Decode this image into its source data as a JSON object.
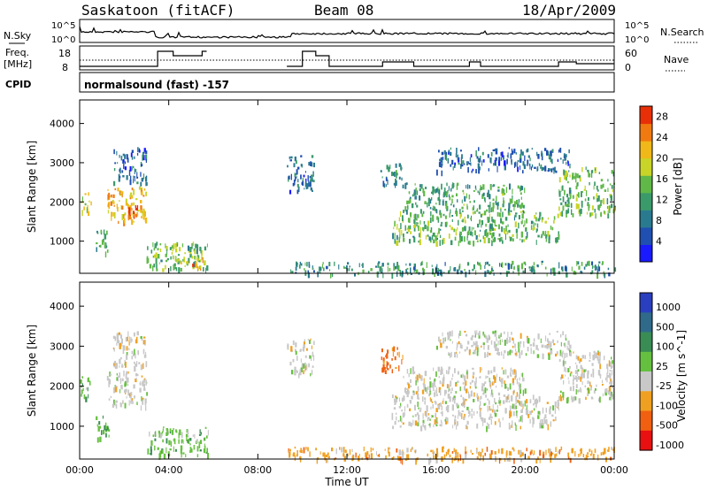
{
  "header": {
    "station": "Saskatoon (fitACF)",
    "beam": "Beam 08",
    "date": "18/Apr/2009"
  },
  "strip_labels": {
    "nsky": "N.Sky",
    "freq_line1": "Freq.",
    "freq_line2": "[MHz]",
    "cpid": "CPID",
    "nsearch": "N.Search",
    "nave": "Nave",
    "cpid_value": "normalsound (fast) -157"
  },
  "strip_ticks": {
    "noise_top": "10^5",
    "noise_bottom": "10^0",
    "freq_top": "18",
    "freq_bottom": "8",
    "nave_top": "60",
    "nave_bottom": "0"
  },
  "chart_data": [
    {
      "type": "heatmap",
      "panel": "power",
      "ylabel": "Slant Range [km]",
      "xlabel": "Time UT",
      "xlim": [
        0,
        24
      ],
      "ylim": [
        180,
        4600
      ],
      "x_ticks": [
        "00:00",
        "04:00",
        "08:00",
        "12:00",
        "16:00",
        "20:00",
        "00:00"
      ],
      "y_ticks": [
        "1000",
        "2000",
        "3000",
        "4000"
      ],
      "colorbar": {
        "label": "Power [dB]",
        "range": [
          0,
          30
        ],
        "ticks": [
          "4",
          "8",
          "12",
          "16",
          "20",
          "24",
          "28"
        ],
        "colors": [
          "#1a1aff",
          "#1f4fb0",
          "#2a7a8f",
          "#3b9a6a",
          "#60b848",
          "#c8d428",
          "#f0b818",
          "#f07a10",
          "#e83008"
        ]
      },
      "echo_regions": [
        {
          "t0": 0.0,
          "t1": 0.5,
          "r0": 1700,
          "r1": 2300,
          "p": 18
        },
        {
          "t0": 0.7,
          "t1": 1.3,
          "r0": 700,
          "r1": 1300,
          "p": 12
        },
        {
          "t0": 1.2,
          "t1": 3.0,
          "r0": 1500,
          "r1": 2400,
          "p": 22
        },
        {
          "t0": 1.5,
          "t1": 3.0,
          "r0": 2500,
          "r1": 3400,
          "p": 6
        },
        {
          "t0": 2.0,
          "t1": 2.6,
          "r0": 1600,
          "r1": 2100,
          "p": 27
        },
        {
          "t0": 3.0,
          "t1": 5.8,
          "r0": 300,
          "r1": 1000,
          "p": 14
        },
        {
          "t0": 4.5,
          "t1": 5.6,
          "r0": 350,
          "r1": 650,
          "p": 24
        },
        {
          "t0": 9.3,
          "t1": 10.5,
          "r0": 2300,
          "r1": 3200,
          "p": 6
        },
        {
          "t0": 9.3,
          "t1": 24.0,
          "r0": 180,
          "r1": 500,
          "p": 10
        },
        {
          "t0": 13.5,
          "t1": 14.5,
          "r0": 2400,
          "r1": 3000,
          "p": 10
        },
        {
          "t0": 14.0,
          "t1": 21.5,
          "r0": 1000,
          "r1": 1800,
          "p": 14
        },
        {
          "t0": 14.5,
          "t1": 20.0,
          "r0": 1800,
          "r1": 2500,
          "p": 12
        },
        {
          "t0": 16.0,
          "t1": 22.0,
          "r0": 2800,
          "r1": 3400,
          "p": 6
        },
        {
          "t0": 21.5,
          "t1": 24.0,
          "r0": 1700,
          "r1": 2900,
          "p": 14
        }
      ]
    },
    {
      "type": "heatmap",
      "panel": "velocity",
      "ylabel": "Slant Range [km]",
      "xlabel": "Time UT",
      "xlim": [
        0,
        24
      ],
      "ylim": [
        180,
        4600
      ],
      "x_ticks": [
        "00:00",
        "04:00",
        "08:00",
        "12:00",
        "16:00",
        "20:00",
        "00:00"
      ],
      "y_ticks": [
        "1000",
        "2000",
        "3000",
        "4000"
      ],
      "colorbar": {
        "label": "Velocity [m s^-1]",
        "ticks": [
          "1000",
          "500",
          "100",
          "25",
          "-25",
          "-100",
          "-500",
          "-1000"
        ],
        "colors": [
          "#2a3fbf",
          "#2f6a8a",
          "#3a8c55",
          "#66c040",
          "#c8c8c8",
          "#f0a020",
          "#f06010",
          "#e81010"
        ]
      },
      "echo_regions": [
        {
          "t0": 0.0,
          "t1": 0.5,
          "r0": 1700,
          "r1": 2300,
          "c": 3
        },
        {
          "t0": 0.7,
          "t1": 1.3,
          "r0": 700,
          "r1": 1300,
          "c": 3
        },
        {
          "t0": 1.2,
          "t1": 3.0,
          "r0": 1500,
          "r1": 2400,
          "c": 4
        },
        {
          "t0": 1.5,
          "t1": 3.0,
          "r0": 2500,
          "r1": 3400,
          "c": 4
        },
        {
          "t0": 3.0,
          "t1": 5.8,
          "r0": 300,
          "r1": 1000,
          "c": 3
        },
        {
          "t0": 9.3,
          "t1": 10.5,
          "r0": 2300,
          "r1": 3200,
          "c": 4
        },
        {
          "t0": 9.3,
          "t1": 24.0,
          "r0": 180,
          "r1": 500,
          "c": 5
        },
        {
          "t0": 13.5,
          "t1": 14.5,
          "r0": 2400,
          "r1": 3000,
          "c": 6
        },
        {
          "t0": 14.0,
          "t1": 21.5,
          "r0": 1000,
          "r1": 1800,
          "c": 4
        },
        {
          "t0": 14.5,
          "t1": 20.0,
          "r0": 1800,
          "r1": 2500,
          "c": 4
        },
        {
          "t0": 16.0,
          "t1": 22.0,
          "r0": 2800,
          "r1": 3400,
          "c": 4
        },
        {
          "t0": 21.5,
          "t1": 24.0,
          "r0": 1700,
          "r1": 2900,
          "c": 4
        }
      ]
    }
  ]
}
